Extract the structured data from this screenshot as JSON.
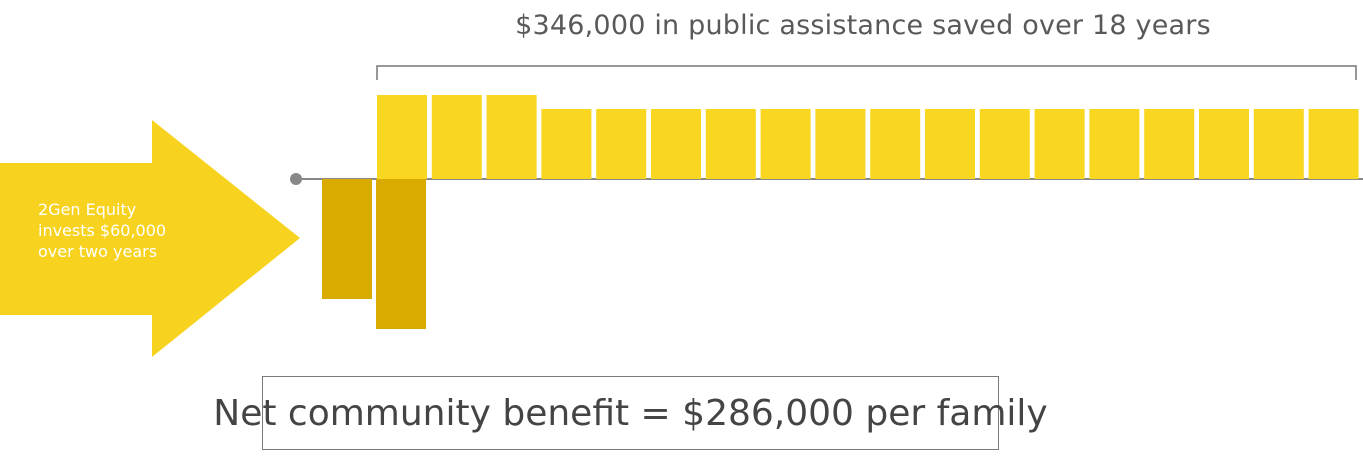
{
  "headline": "$346,000 in public assistance saved over 18 years",
  "arrow": {
    "lines": [
      "2Gen Equity",
      "invests $60,000",
      "over two years"
    ]
  },
  "summary": "Net community benefit = $286,000 per family",
  "colors": {
    "arrow": "#f7d21e",
    "savings_bar": "#f9d61f",
    "investment_bar": "#d9aa00",
    "baseline": "#888888",
    "bracket": "#777777"
  },
  "chart_data": {
    "type": "bar",
    "title": "$346,000 in public assistance saved over 18 years",
    "series": [
      {
        "values": [
          -60,
          -75
        ]
      },
      {
        "values": [
          42,
          42,
          42,
          35,
          35,
          35,
          35,
          35,
          35,
          35,
          35,
          35,
          35,
          35,
          35,
          35,
          35,
          35
        ]
      }
    ],
    "grid": false,
    "legend": "none"
  }
}
